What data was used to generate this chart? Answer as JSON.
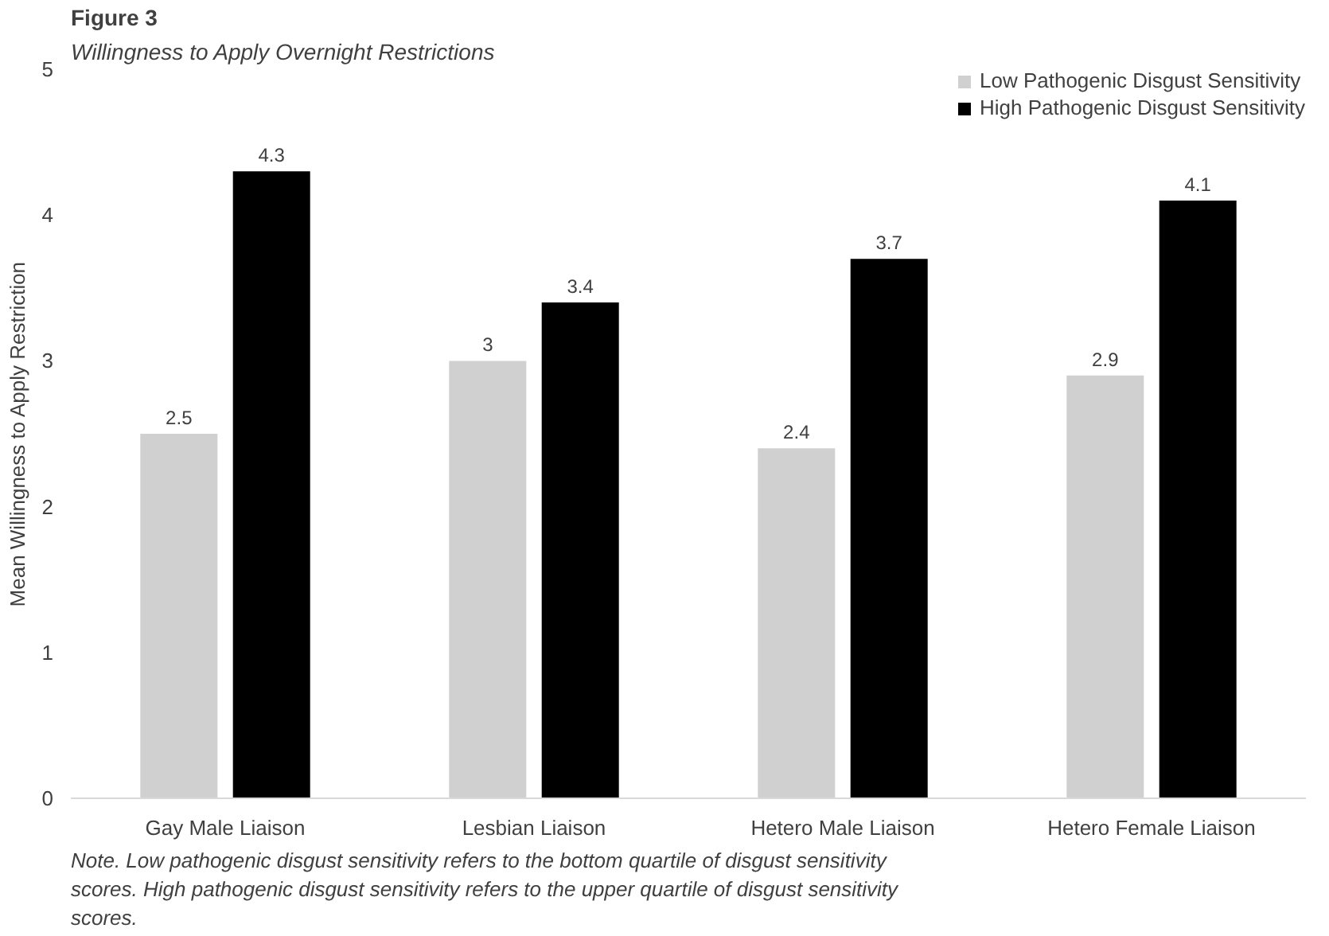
{
  "chart_data": {
    "type": "bar",
    "title": "Figure 3",
    "subtitle": "Willingness to Apply Overnight Restrictions",
    "ylabel": "Mean Willingness to Apply Restriction",
    "categories": [
      "Gay Male Liaison",
      "Lesbian Liaison",
      "Hetero Male Liaison",
      "Hetero Female Liaison"
    ],
    "series": [
      {
        "name": "Low Pathogenic Disgust Sensitivity",
        "color": "#d0d0d0",
        "values": [
          2.5,
          3,
          2.4,
          2.9
        ]
      },
      {
        "name": "High Pathogenic Disgust Sensitivity",
        "color": "#000000",
        "values": [
          4.3,
          3.4,
          3.7,
          4.1
        ]
      }
    ],
    "ylim": [
      0,
      5
    ],
    "yticks": [
      0,
      1,
      2,
      3,
      4,
      5
    ],
    "grid": false,
    "legend": "top right",
    "data_labels": true,
    "annotations": [
      "Note. Low pathogenic disgust sensitivity refers to the bottom quartile of disgust sensitivity scores. High pathogenic disgust sensitivity refers to the upper quartile of disgust sensitivity scores."
    ]
  }
}
